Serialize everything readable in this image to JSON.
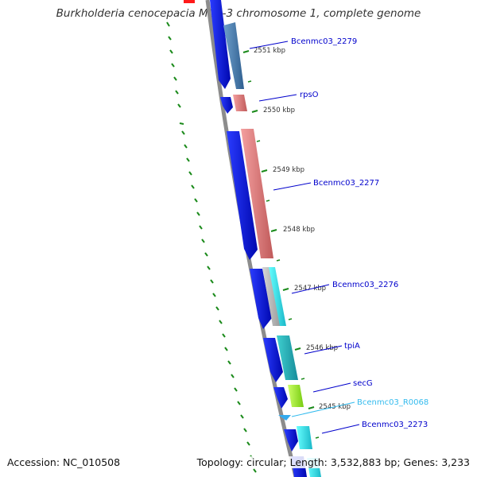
{
  "title": "Burkholderia cenocepacia MC0-3 chromosome 1, complete genome",
  "accession": "Accession: NC_010508",
  "summary": "Topology: circular; Length: 3,532,883 bp; Genes: 3,233",
  "colors": {
    "forward_cds": "#0a14e6",
    "backbone": "#8c8c8c",
    "tick": "#1a8a1a",
    "label_blue": "#0000cc",
    "label_rna": "#33bbee",
    "reverse_steelblue": "#4a7fb0",
    "reverse_salmon": "#f08080",
    "reverse_gray": "#b4b4b4",
    "reverse_cyan": "#22d6d6",
    "reverse_teal": "#20b0b0",
    "reverse_lime": "#99ff22"
  },
  "kbp_labels": [
    "2551 kbp",
    "2550 kbp",
    "2549 kbp",
    "2548 kbp",
    "2547 kbp",
    "2546 kbp",
    "2545 kbp"
  ],
  "gene_labels": [
    {
      "text": "Bcenmc03_2279",
      "type": "cds"
    },
    {
      "text": "rpsO",
      "type": "cds"
    },
    {
      "text": "Bcenmc03_2277",
      "type": "cds"
    },
    {
      "text": "Bcenmc03_2276",
      "type": "cds"
    },
    {
      "text": "tpiA",
      "type": "cds"
    },
    {
      "text": "secG",
      "type": "cds"
    },
    {
      "text": "Bcenmc03_R0068",
      "type": "rna"
    },
    {
      "text": "Bcenmc03_2273",
      "type": "cds"
    }
  ]
}
